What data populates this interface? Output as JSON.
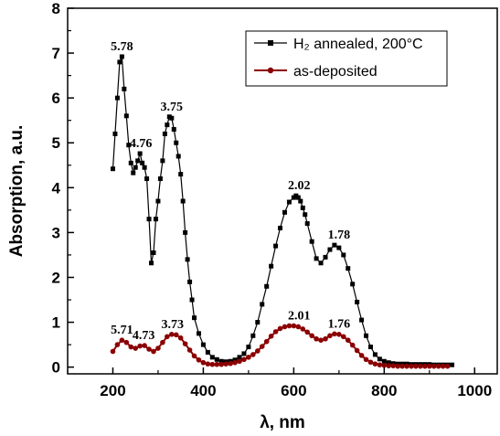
{
  "chart_data": {
    "type": "line",
    "xlabel": "λ, nm",
    "ylabel": "Absorption, a.u.",
    "xlim": [
      100,
      1050
    ],
    "ylim": [
      -0.15,
      8
    ],
    "x_ticks": [
      200,
      400,
      600,
      800,
      1000
    ],
    "y_ticks": [
      0,
      1,
      2,
      3,
      4,
      5,
      6,
      7,
      8
    ],
    "grid": false,
    "legend_position": "top-right",
    "series": [
      {
        "name": "H₂ annealed, 200°C",
        "color": "#000000",
        "marker": "square",
        "x": [
          200,
          205,
          210,
          215,
          220,
          225,
          230,
          235,
          240,
          245,
          250,
          255,
          260,
          265,
          270,
          275,
          280,
          285,
          290,
          295,
          300,
          305,
          310,
          315,
          320,
          325,
          330,
          335,
          340,
          345,
          350,
          355,
          360,
          365,
          370,
          375,
          380,
          390,
          400,
          410,
          420,
          430,
          440,
          450,
          460,
          470,
          480,
          490,
          500,
          510,
          520,
          530,
          540,
          550,
          560,
          570,
          580,
          590,
          600,
          605,
          610,
          615,
          620,
          625,
          630,
          640,
          650,
          660,
          670,
          680,
          690,
          700,
          710,
          720,
          730,
          740,
          750,
          760,
          770,
          780,
          790,
          800,
          810,
          820,
          830,
          840,
          850,
          860,
          870,
          880,
          890,
          900,
          910,
          920,
          930,
          940,
          950
        ],
        "y": [
          4.42,
          5.2,
          6.0,
          6.8,
          6.92,
          6.2,
          5.6,
          4.95,
          4.55,
          4.33,
          4.45,
          4.6,
          4.76,
          4.55,
          4.45,
          4.2,
          3.3,
          2.32,
          2.55,
          3.3,
          3.7,
          4.2,
          4.6,
          5.2,
          5.4,
          5.58,
          5.55,
          5.3,
          5.0,
          4.7,
          4.3,
          3.7,
          3.0,
          2.4,
          1.9,
          1.5,
          1.1,
          0.75,
          0.5,
          0.33,
          0.22,
          0.17,
          0.13,
          0.12,
          0.13,
          0.16,
          0.22,
          0.3,
          0.45,
          0.7,
          1.0,
          1.4,
          1.8,
          2.25,
          2.7,
          3.1,
          3.45,
          3.68,
          3.78,
          3.82,
          3.78,
          3.7,
          3.55,
          3.4,
          3.2,
          2.8,
          2.42,
          2.32,
          2.45,
          2.62,
          2.72,
          2.66,
          2.5,
          2.2,
          1.85,
          1.45,
          1.05,
          0.7,
          0.45,
          0.28,
          0.18,
          0.13,
          0.1,
          0.08,
          0.07,
          0.07,
          0.07,
          0.06,
          0.06,
          0.06,
          0.06,
          0.06,
          0.05,
          0.05,
          0.05,
          0.05,
          0.05
        ]
      },
      {
        "name": "as-deposited",
        "color": "#8b0000",
        "marker": "circle",
        "x": [
          200,
          210,
          220,
          230,
          240,
          250,
          260,
          270,
          280,
          290,
          300,
          310,
          320,
          330,
          340,
          350,
          360,
          370,
          380,
          390,
          400,
          410,
          420,
          430,
          440,
          450,
          460,
          470,
          480,
          490,
          500,
          510,
          520,
          530,
          540,
          550,
          560,
          570,
          580,
          590,
          600,
          610,
          620,
          630,
          640,
          650,
          660,
          670,
          680,
          690,
          700,
          710,
          720,
          730,
          740,
          750,
          760,
          770,
          780,
          790,
          800,
          810,
          820,
          830,
          840,
          850,
          860,
          870,
          880,
          890,
          900,
          910,
          920,
          930,
          940
        ],
        "y": [
          0.35,
          0.5,
          0.6,
          0.55,
          0.45,
          0.42,
          0.47,
          0.48,
          0.4,
          0.35,
          0.42,
          0.55,
          0.68,
          0.73,
          0.72,
          0.65,
          0.52,
          0.38,
          0.25,
          0.16,
          0.1,
          0.07,
          0.06,
          0.06,
          0.06,
          0.07,
          0.08,
          0.1,
          0.13,
          0.17,
          0.22,
          0.28,
          0.36,
          0.46,
          0.57,
          0.69,
          0.79,
          0.86,
          0.9,
          0.92,
          0.92,
          0.9,
          0.85,
          0.78,
          0.7,
          0.63,
          0.6,
          0.63,
          0.7,
          0.74,
          0.73,
          0.68,
          0.6,
          0.49,
          0.37,
          0.26,
          0.17,
          0.11,
          0.07,
          0.05,
          0.04,
          0.03,
          0.03,
          0.02,
          0.02,
          0.02,
          0.02,
          0.02,
          0.02,
          0.02,
          0.02,
          0.02,
          0.02,
          0.02,
          0.02
        ]
      }
    ],
    "annotations": [
      {
        "text": "5.78",
        "series": 0,
        "x": 220,
        "y": 6.92
      },
      {
        "text": "4.76",
        "series": 0,
        "x": 262,
        "y": 4.76
      },
      {
        "text": "3.75",
        "series": 0,
        "x": 330,
        "y": 5.58
      },
      {
        "text": "2.02",
        "series": 0,
        "x": 612,
        "y": 3.82
      },
      {
        "text": "1.78",
        "series": 0,
        "x": 700,
        "y": 2.72
      },
      {
        "text": "5.71",
        "series": 1,
        "x": 220,
        "y": 0.6
      },
      {
        "text": "4.73",
        "series": 1,
        "x": 268,
        "y": 0.48
      },
      {
        "text": "3.73",
        "series": 1,
        "x": 332,
        "y": 0.73
      },
      {
        "text": "2.01",
        "series": 1,
        "x": 612,
        "y": 0.92
      },
      {
        "text": "1.76",
        "series": 1,
        "x": 700,
        "y": 0.74
      }
    ]
  }
}
